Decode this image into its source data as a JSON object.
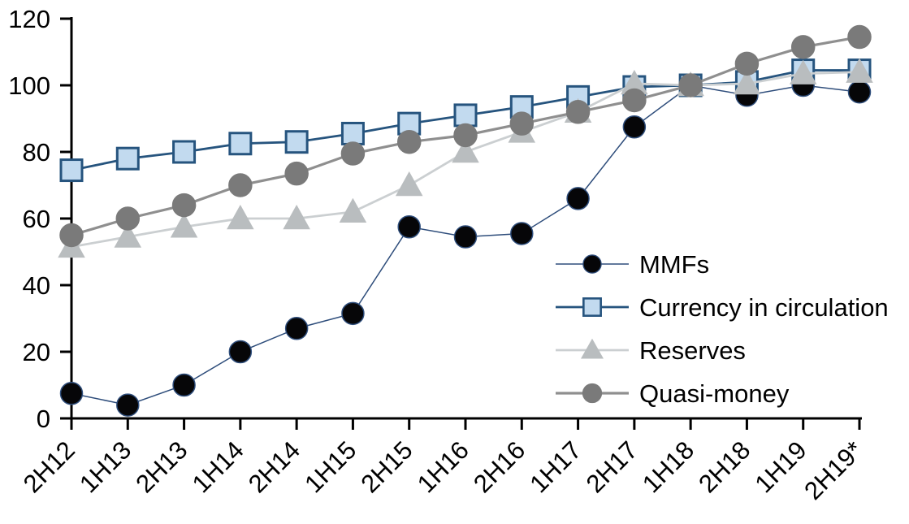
{
  "chart_data": {
    "type": "line",
    "title": "",
    "xlabel": "",
    "ylabel": "",
    "grid": false,
    "ylim": [
      0,
      120
    ],
    "yticks": [
      0,
      20,
      40,
      60,
      80,
      100,
      120
    ],
    "axis_color": "#000000",
    "text_color": "#000000",
    "background_color": "#ffffff",
    "categories": [
      "2H12",
      "1H13",
      "2H13",
      "1H14",
      "2H14",
      "1H15",
      "2H15",
      "1H16",
      "2H16",
      "1H17",
      "2H17",
      "1H18",
      "2H18",
      "1H19",
      "2H19*"
    ],
    "series": [
      {
        "name": "MMFs",
        "marker": "circle",
        "line_color": "#2E4D7B",
        "line_width": 1.5,
        "marker_fill": "#060608",
        "marker_stroke": "#2E4D7B",
        "marker_size": 27,
        "values": [
          7.5,
          4,
          10,
          20,
          27,
          31.5,
          57.5,
          54.5,
          55.5,
          66,
          87.5,
          100,
          97,
          100,
          98
        ]
      },
      {
        "name": "Currency in circulation",
        "marker": "square",
        "line_color": "#26547E",
        "line_width": 2.8,
        "marker_fill": "#C2DAEF",
        "marker_stroke": "#26547E",
        "marker_size": 26,
        "values": [
          74.5,
          78,
          80,
          82.5,
          83,
          85.5,
          88.5,
          91,
          93.5,
          96.5,
          99.5,
          100,
          101,
          104.5,
          104.5
        ]
      },
      {
        "name": "Reserves",
        "marker": "triangle",
        "line_color": "#CBCFD1",
        "line_width": 2.8,
        "marker_fill": "#B9BDBF",
        "marker_stroke": "#B9BDBF",
        "marker_size": 29,
        "values": [
          51.5,
          54.5,
          57.5,
          60,
          60,
          62,
          70,
          80,
          86,
          92,
          100.5,
          100,
          100.5,
          103.5,
          104
        ]
      },
      {
        "name": "Quasi-money",
        "marker": "circle",
        "line_color": "#8F8F8F",
        "line_width": 3.2,
        "marker_fill": "#7A7A7A",
        "marker_stroke": "#7A7A7A",
        "marker_size": 28,
        "values": [
          55,
          60,
          64,
          70,
          73.5,
          79.5,
          83,
          85,
          88.5,
          92,
          95.5,
          100,
          106.5,
          111.5,
          114.5
        ]
      }
    ],
    "draw_order": [
      1,
      0,
      2,
      3
    ],
    "legend": {
      "position": "inside-right",
      "entries": [
        "MMFs",
        "Currency in circulation",
        "Reserves",
        "Quasi-money"
      ]
    }
  }
}
